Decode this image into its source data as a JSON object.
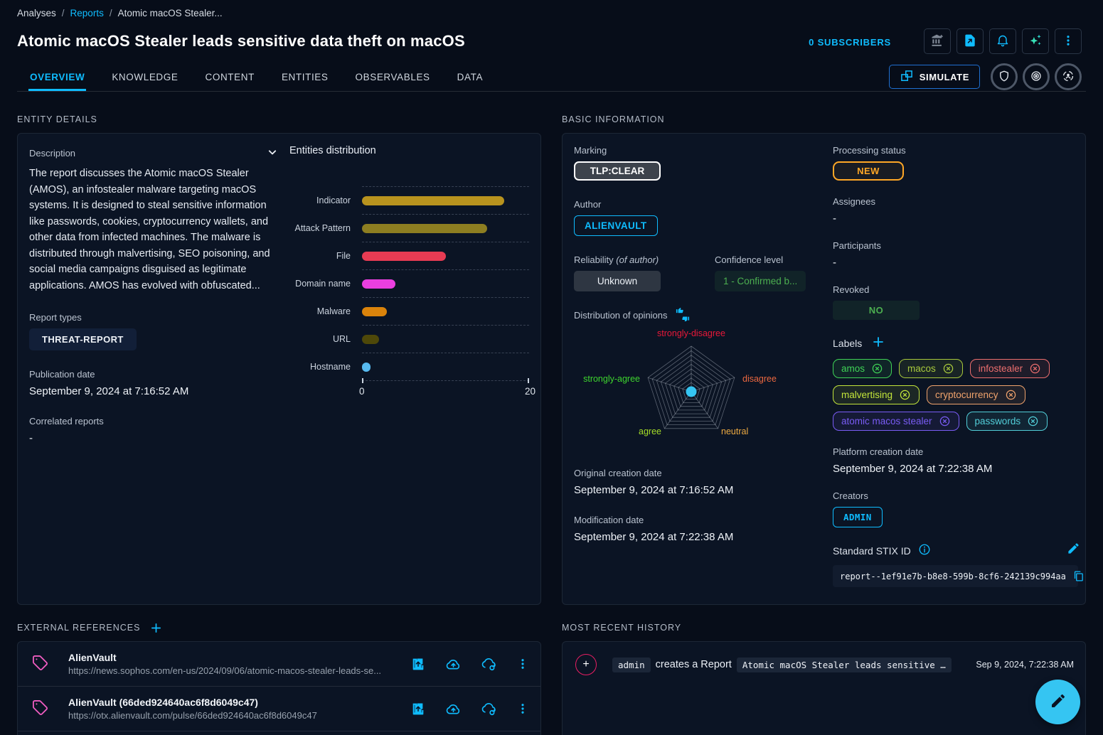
{
  "colors": {
    "accent": "#0fbcff",
    "page_bg": "#070d19",
    "panel_bg": "#0b1424",
    "pink": "#e91e63",
    "fab": "#35c5f2"
  },
  "breadcrumb": {
    "separator": "/",
    "items": [
      "Analyses",
      "Reports",
      "Atomic macOS Stealer..."
    ]
  },
  "header": {
    "title": "Atomic macOS Stealer leads sensitive data theft on macOS",
    "subscribers": "0 SUBSCRIBERS",
    "simulate_label": "SIMULATE"
  },
  "tabs": [
    {
      "label": "OVERVIEW",
      "active": true
    },
    {
      "label": "KNOWLEDGE",
      "active": false
    },
    {
      "label": "CONTENT",
      "active": false
    },
    {
      "label": "ENTITIES",
      "active": false
    },
    {
      "label": "OBSERVABLES",
      "active": false
    },
    {
      "label": "DATA",
      "active": false
    }
  ],
  "entity_details": {
    "section_title": "ENTITY DETAILS",
    "description_label": "Description",
    "description": "The report discusses the Atomic macOS Stealer (AMOS), an infostealer malware targeting macOS systems. It is designed to steal sensitive information like passwords, cookies, cryptocurrency wallets, and other data from infected machines. The malware is distributed through malvertising, SEO poisoning, and social media campaigns disguised as legitimate applications. AMOS has evolved with obfuscated...",
    "report_types_label": "Report types",
    "report_type": "THREAT-REPORT",
    "publication_date_label": "Publication date",
    "publication_date": "September 9, 2024 at 7:16:52 AM",
    "correlated_reports_label": "Correlated reports",
    "correlated_reports": "-"
  },
  "chart_data": [
    {
      "type": "bar",
      "orientation": "horizontal",
      "title": "Entities distribution",
      "categories": [
        "Indicator",
        "Attack Pattern",
        "File",
        "Domain name",
        "Malware",
        "URL",
        "Hostname"
      ],
      "values": [
        17,
        15,
        10,
        4,
        3,
        2,
        1
      ],
      "colors": [
        "#b8931e",
        "#8d7e21",
        "#e73b53",
        "#eb3fe0",
        "#da830b",
        "#4e4809",
        "#57baf0"
      ],
      "xlim": [
        0,
        20
      ],
      "x_tick_labels": [
        "0",
        "20"
      ],
      "grid": "dashed-horizontal",
      "legend": false
    },
    {
      "type": "radar",
      "title": "Distribution of opinions",
      "axes": [
        "strongly-disagree",
        "disagree",
        "neutral",
        "agree",
        "strongly-agree"
      ],
      "axis_colors": [
        "#ea1839",
        "#ec6840",
        "#edaa42",
        "#a4dc28",
        "#3ed52e"
      ],
      "rings": 10,
      "series": [
        {
          "name": "opinions",
          "values": [
            0,
            0,
            0,
            0,
            0
          ]
        }
      ],
      "center_dot_color": "#35c5f2"
    }
  ],
  "basic_info": {
    "section_title": "BASIC INFORMATION",
    "marking_label": "Marking",
    "marking": "TLP:CLEAR",
    "author_label": "Author",
    "author": "ALIENVAULT",
    "reliability_label": "Reliability",
    "reliability_label_suffix": "(of author)",
    "reliability": "Unknown",
    "confidence_label": "Confidence level",
    "confidence": "1 - Confirmed b...",
    "opinions_label": "Distribution of opinions",
    "original_creation_label": "Original creation date",
    "original_creation": "September 9, 2024 at 7:16:52 AM",
    "modification_label": "Modification date",
    "modification": "September 9, 2024 at 7:22:38 AM",
    "processing_status_label": "Processing status",
    "processing_status": "NEW",
    "assignees_label": "Assignees",
    "assignees": "-",
    "participants_label": "Participants",
    "participants": "-",
    "revoked_label": "Revoked",
    "revoked": "NO",
    "platform_creation_label": "Platform creation date",
    "platform_creation": "September 9, 2024 at 7:22:38 AM",
    "creators_label": "Creators",
    "creator": "ADMIN",
    "stix_label": "Standard STIX ID",
    "stix_id": "report--1ef91e7b-b8e8-599b-8cf6-242139c994aa"
  },
  "labels": {
    "title": "Labels",
    "items": [
      {
        "text": "amos",
        "color": "#3fd356"
      },
      {
        "text": "macos",
        "color": "#a8c93c"
      },
      {
        "text": "infostealer",
        "color": "#ec6e6e"
      },
      {
        "text": "malvertising",
        "color": "#c3e53a"
      },
      {
        "text": "cryptocurrency",
        "color": "#f0a36c"
      },
      {
        "text": "atomic macos stealer",
        "color": "#7a5cf5"
      },
      {
        "text": "passwords",
        "color": "#52cfd9"
      }
    ]
  },
  "external_references": {
    "section_title": "EXTERNAL REFERENCES",
    "items": [
      {
        "name": "AlienVault",
        "url": "https://news.sophos.com/en-us/2024/09/06/atomic-macos-stealer-leads-se..."
      },
      {
        "name": "AlienVault (66ded924640ac6f8d6049c47)",
        "url": "https://otx.alienvault.com/pulse/66ded924640ac6f8d6049c47"
      }
    ]
  },
  "history": {
    "section_title": "MOST RECENT HISTORY",
    "entries": [
      {
        "badge": "+",
        "user": "admin",
        "action": "creates a Report",
        "target": "Atomic macOS Stealer leads sensitive …",
        "date": "Sep 9, 2024, 7:22:38 AM"
      }
    ]
  }
}
